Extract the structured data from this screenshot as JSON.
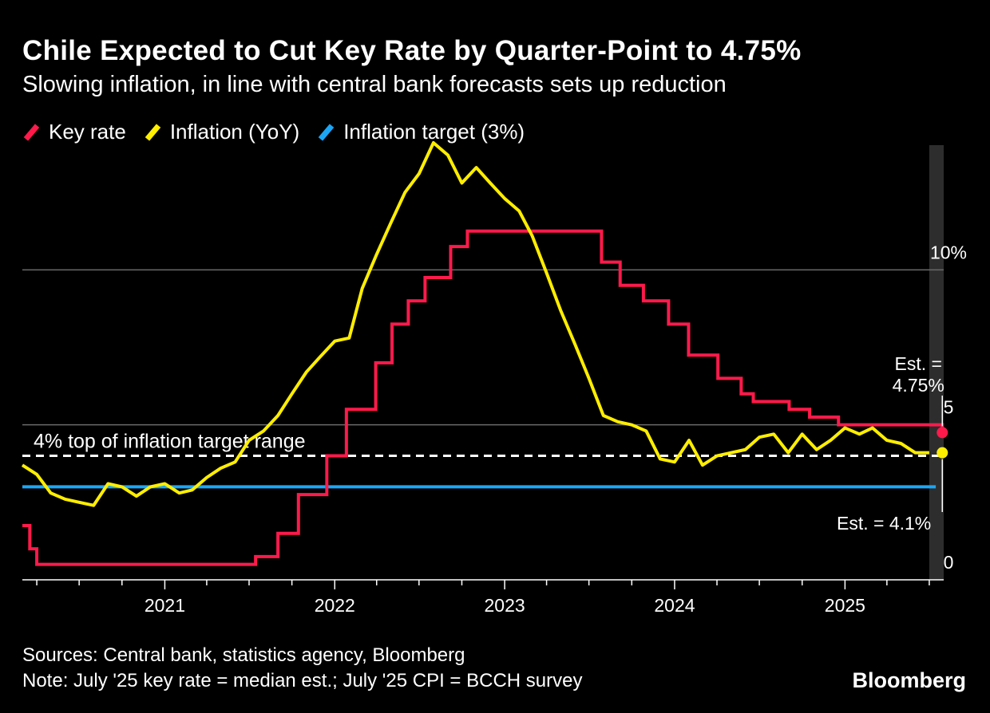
{
  "chart_data": {
    "type": "line",
    "title": "Chile Expected to Cut Key Rate by Quarter-Point to 4.75%",
    "subtitle": "Slowing inflation, in line with central bank forecasts sets up reduction",
    "legend": [
      {
        "label": "Key rate",
        "color": "#ff1a4b"
      },
      {
        "label": "Inflation (YoY)",
        "color": "#ffee00"
      },
      {
        "label": "Inflation target (3%)",
        "color": "#1ba6f5"
      }
    ],
    "x_range": [
      "2020-03-01",
      "2025-08-01"
    ],
    "ylim": [
      0,
      15
    ],
    "y_ticks": [
      {
        "value": 0,
        "label": "0"
      },
      {
        "value": 5,
        "label": "5"
      },
      {
        "value": 10,
        "label": "10%"
      }
    ],
    "x_ticks": [
      {
        "date": "2021-01-01",
        "label": "2021"
      },
      {
        "date": "2022-01-01",
        "label": "2022"
      },
      {
        "date": "2023-01-01",
        "label": "2023"
      },
      {
        "date": "2024-01-01",
        "label": "2024"
      },
      {
        "date": "2025-01-01",
        "label": "2025"
      }
    ],
    "series": [
      {
        "name": "Key rate",
        "color": "#ff1a4b",
        "step": true,
        "points": [
          [
            "2020-03-01",
            1.75
          ],
          [
            "2020-03-17",
            1.0
          ],
          [
            "2020-04-01",
            0.5
          ],
          [
            "2021-07-15",
            0.75
          ],
          [
            "2021-09-01",
            1.5
          ],
          [
            "2021-10-15",
            2.75
          ],
          [
            "2021-12-15",
            4.0
          ],
          [
            "2022-01-26",
            5.5
          ],
          [
            "2022-03-30",
            7.0
          ],
          [
            "2022-05-04",
            8.25
          ],
          [
            "2022-06-08",
            9.0
          ],
          [
            "2022-07-14",
            9.75
          ],
          [
            "2022-09-07",
            10.75
          ],
          [
            "2022-10-13",
            11.25
          ],
          [
            "2023-07-28",
            10.25
          ],
          [
            "2023-09-06",
            9.5
          ],
          [
            "2023-10-26",
            9.0
          ],
          [
            "2023-12-19",
            8.25
          ],
          [
            "2024-01-31",
            7.25
          ],
          [
            "2024-04-03",
            6.5
          ],
          [
            "2024-05-23",
            6.0
          ],
          [
            "2024-06-18",
            5.75
          ],
          [
            "2024-09-03",
            5.5
          ],
          [
            "2024-10-17",
            5.25
          ],
          [
            "2024-12-18",
            5.0
          ],
          [
            "2025-07-15",
            5.0
          ],
          [
            "2025-07-29",
            4.75
          ]
        ]
      },
      {
        "name": "Inflation (YoY)",
        "color": "#ffee00",
        "step": false,
        "points": [
          [
            "2020-03-01",
            3.7
          ],
          [
            "2020-04-01",
            3.4
          ],
          [
            "2020-05-01",
            2.8
          ],
          [
            "2020-06-01",
            2.6
          ],
          [
            "2020-07-01",
            2.5
          ],
          [
            "2020-08-01",
            2.4
          ],
          [
            "2020-09-01",
            3.1
          ],
          [
            "2020-10-01",
            3.0
          ],
          [
            "2020-11-01",
            2.7
          ],
          [
            "2020-12-01",
            3.0
          ],
          [
            "2021-01-01",
            3.1
          ],
          [
            "2021-02-01",
            2.8
          ],
          [
            "2021-03-01",
            2.9
          ],
          [
            "2021-04-01",
            3.3
          ],
          [
            "2021-05-01",
            3.6
          ],
          [
            "2021-06-01",
            3.8
          ],
          [
            "2021-07-01",
            4.5
          ],
          [
            "2021-08-01",
            4.8
          ],
          [
            "2021-09-01",
            5.3
          ],
          [
            "2021-10-01",
            6.0
          ],
          [
            "2021-11-01",
            6.7
          ],
          [
            "2021-12-01",
            7.2
          ],
          [
            "2022-01-01",
            7.7
          ],
          [
            "2022-02-01",
            7.8
          ],
          [
            "2022-03-01",
            9.4
          ],
          [
            "2022-04-01",
            10.5
          ],
          [
            "2022-05-01",
            11.5
          ],
          [
            "2022-06-01",
            12.5
          ],
          [
            "2022-07-01",
            13.1
          ],
          [
            "2022-08-01",
            14.1
          ],
          [
            "2022-09-01",
            13.7
          ],
          [
            "2022-10-01",
            12.8
          ],
          [
            "2022-11-01",
            13.3
          ],
          [
            "2022-12-01",
            12.8
          ],
          [
            "2023-01-01",
            12.3
          ],
          [
            "2023-02-01",
            11.9
          ],
          [
            "2023-03-01",
            11.1
          ],
          [
            "2023-04-01",
            9.9
          ],
          [
            "2023-05-01",
            8.7
          ],
          [
            "2023-06-01",
            7.6
          ],
          [
            "2023-07-01",
            6.5
          ],
          [
            "2023-08-01",
            5.3
          ],
          [
            "2023-09-01",
            5.1
          ],
          [
            "2023-10-01",
            5.0
          ],
          [
            "2023-11-01",
            4.8
          ],
          [
            "2023-12-01",
            3.9
          ],
          [
            "2024-01-01",
            3.8
          ],
          [
            "2024-02-01",
            4.5
          ],
          [
            "2024-03-01",
            3.7
          ],
          [
            "2024-04-01",
            4.0
          ],
          [
            "2024-05-01",
            4.1
          ],
          [
            "2024-06-01",
            4.2
          ],
          [
            "2024-07-01",
            4.6
          ],
          [
            "2024-08-01",
            4.7
          ],
          [
            "2024-09-01",
            4.1
          ],
          [
            "2024-10-01",
            4.7
          ],
          [
            "2024-11-01",
            4.2
          ],
          [
            "2024-12-01",
            4.5
          ],
          [
            "2025-01-01",
            4.9
          ],
          [
            "2025-02-01",
            4.7
          ],
          [
            "2025-03-01",
            4.9
          ],
          [
            "2025-04-01",
            4.5
          ],
          [
            "2025-05-01",
            4.4
          ],
          [
            "2025-06-01",
            4.1
          ],
          [
            "2025-07-01",
            4.1
          ]
        ]
      },
      {
        "name": "Inflation target (3%)",
        "color": "#1ba6f5",
        "step": false,
        "points": [
          [
            "2020-03-01",
            3.0
          ],
          [
            "2025-07-15",
            3.0
          ]
        ]
      }
    ],
    "reference_line": {
      "value": 4,
      "label": "4% top of inflation target range",
      "style": "dashed"
    },
    "shaded_band": {
      "from": "2025-07-01",
      "to": "2025-08-01"
    },
    "annotations": [
      {
        "text_line1": "Est. =",
        "text_line2": "4.75%",
        "date": "2025-07-29",
        "value": 4.75,
        "color": "#ff1a4b"
      },
      {
        "text": "Est. = 4.1%",
        "date": "2025-07-29",
        "value": 4.1,
        "color": "#ffee00"
      }
    ],
    "grid": true
  },
  "footer": {
    "sources": "Sources: Central bank, statistics agency, Bloomberg",
    "note": "Note: July '25 key rate = median est.; July '25 CPI = BCCH survey",
    "brand": "Bloomberg"
  }
}
